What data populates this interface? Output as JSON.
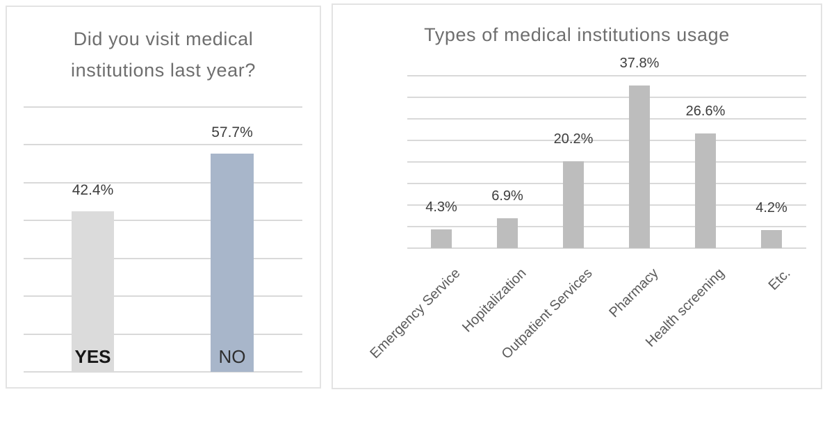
{
  "chart_data": [
    {
      "type": "bar",
      "title": "Did you visit medical institutions last year?",
      "title_lines": [
        "Did you visit medical",
        "institutions last year?"
      ],
      "categories": [
        "YES",
        "NO"
      ],
      "values": [
        42.4,
        57.7
      ],
      "value_labels": [
        "42.4%",
        "57.7%"
      ],
      "bar_colors": [
        "#dbdbdb",
        "#a8b6ca"
      ],
      "xlabel": "",
      "ylabel": "",
      "ylim": [
        0,
        70
      ],
      "gridline_step": 10,
      "grid": true,
      "legend_position": "none",
      "value_label_position": "above-bar",
      "category_label_position": "inside-base"
    },
    {
      "type": "bar",
      "title": "Types of medical institutions usage",
      "categories": [
        "Emergency Service",
        "Hopitalization",
        "Outpatient Services",
        "Pharmacy",
        "Health screening",
        "Etc."
      ],
      "values": [
        4.3,
        6.9,
        20.2,
        37.8,
        26.6,
        4.2
      ],
      "value_labels": [
        "4.3%",
        "6.9%",
        "20.2%",
        "37.8%",
        "26.6%",
        "4.2%"
      ],
      "bar_color": "#bdbdbd",
      "xlabel": "",
      "ylabel": "",
      "ylim": [
        0,
        40
      ],
      "gridline_step": 5,
      "grid": true,
      "legend_position": "none",
      "value_label_position": "above-bar",
      "category_label_position": "below-axis-rotated-45deg"
    }
  ],
  "colors": {
    "background": "#ffffff",
    "panel_border": "#e3e3e3",
    "gridline": "#d9d9d9",
    "title_text": "#6e6e6e",
    "value_label_text": "#3d3d3d",
    "category_label_text": "#5a5a5a",
    "yes_bar": "#dbdbdb",
    "no_bar": "#a8b6ca",
    "usage_bar": "#bdbdbd"
  }
}
